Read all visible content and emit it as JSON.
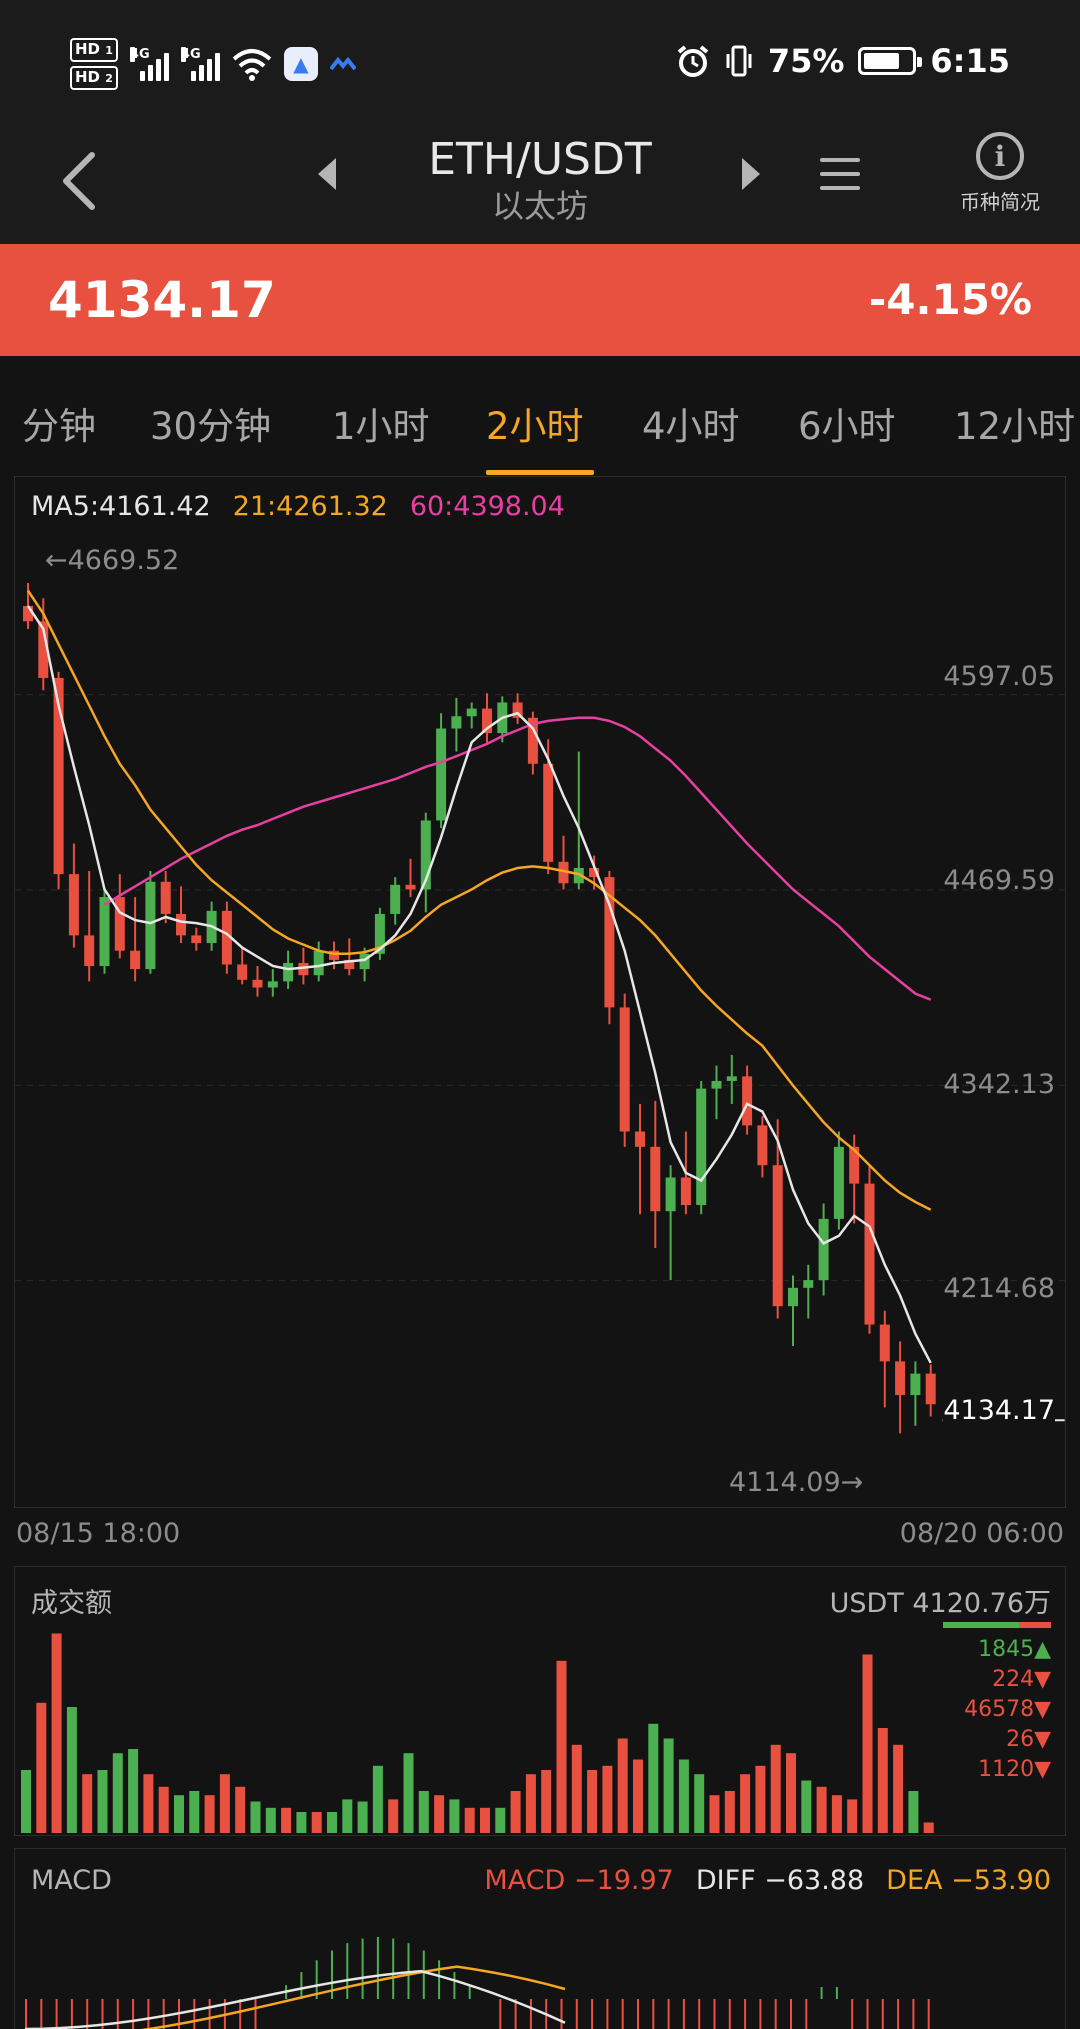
{
  "status_bar": {
    "hd1": "HD",
    "hd1_sub": "1",
    "hd2": "HD",
    "hd2_sub": "2",
    "sim1": "4G",
    "sim2": "4G",
    "battery_pct": "75%",
    "battery_level": 0.75,
    "time": "6:15"
  },
  "nav": {
    "pair": "ETH/USDT",
    "pair_cn": "以太坊",
    "info_label": "币种简况"
  },
  "price": {
    "last": "4134.17",
    "change": "-4.15%",
    "color": "#e8503f"
  },
  "tabs": [
    {
      "label": "分钟",
      "active": false
    },
    {
      "label": "30分钟",
      "active": false
    },
    {
      "label": "1小时",
      "active": false
    },
    {
      "label": "2小时",
      "active": true
    },
    {
      "label": "4小时",
      "active": false
    },
    {
      "label": "6小时",
      "active": false
    },
    {
      "label": "12小时",
      "active": false
    }
  ],
  "ma_legend": {
    "ma5": "MA5:4161.42",
    "ma21": "21:4261.32",
    "ma60": "60:4398.04"
  },
  "colors": {
    "up": "#4caf50",
    "down": "#e8503f",
    "ma5": "#e6e6e6",
    "ma21": "#f5a623",
    "ma60": "#e83fa3",
    "accent": "#f5a623"
  },
  "price_axis": [
    "4597.05",
    "4469.59",
    "4342.13",
    "4214.68"
  ],
  "current_price_label": "4134.17",
  "high_marker": "←4669.52",
  "low_marker": "4114.09→",
  "time_axis": {
    "start": "08/15 18:00",
    "end": "08/20 06:00"
  },
  "volume": {
    "title": "成交额",
    "total": "USDT 4120.76万",
    "list": [
      {
        "value": "1845",
        "dir": "up"
      },
      {
        "value": "224",
        "dir": "down"
      },
      {
        "value": "46578",
        "dir": "down"
      },
      {
        "value": "26",
        "dir": "down"
      },
      {
        "value": "1120",
        "dir": "down"
      }
    ]
  },
  "macd": {
    "title": "MACD",
    "macd": "MACD −19.97",
    "diff": "DIFF −63.88",
    "dea": "DEA −53.90"
  },
  "chart_data": {
    "type": "candlestick",
    "interval": "2小时",
    "ylim": [
      4080,
      4700
    ],
    "candles": [
      [
        4655,
        4670,
        4640,
        4645
      ],
      [
        4645,
        4660,
        4600,
        4608
      ],
      [
        4608,
        4612,
        4470,
        4480
      ],
      [
        4480,
        4500,
        4432,
        4440
      ],
      [
        4440,
        4482,
        4410,
        4420
      ],
      [
        4420,
        4470,
        4415,
        4465
      ],
      [
        4465,
        4480,
        4425,
        4430
      ],
      [
        4430,
        4465,
        4410,
        4418
      ],
      [
        4418,
        4482,
        4415,
        4475
      ],
      [
        4475,
        4482,
        4448,
        4454
      ],
      [
        4454,
        4472,
        4435,
        4440
      ],
      [
        4440,
        4445,
        4430,
        4435
      ],
      [
        4435,
        4462,
        4430,
        4456
      ],
      [
        4456,
        4462,
        4415,
        4421
      ],
      [
        4421,
        4432,
        4408,
        4411
      ],
      [
        4411,
        4420,
        4400,
        4406
      ],
      [
        4406,
        4418,
        4400,
        4410
      ],
      [
        4410,
        4430,
        4405,
        4422
      ],
      [
        4422,
        4432,
        4408,
        4414
      ],
      [
        4414,
        4436,
        4410,
        4430
      ],
      [
        4430,
        4436,
        4418,
        4424
      ],
      [
        4424,
        4438,
        4414,
        4418
      ],
      [
        4418,
        4432,
        4410,
        4428
      ],
      [
        4428,
        4458,
        4424,
        4454
      ],
      [
        4454,
        4478,
        4447,
        4473
      ],
      [
        4473,
        4490,
        4465,
        4470
      ],
      [
        4470,
        4520,
        4455,
        4515
      ],
      [
        4515,
        4585,
        4510,
        4575
      ],
      [
        4575,
        4595,
        4560,
        4583
      ],
      [
        4583,
        4592,
        4575,
        4588
      ],
      [
        4588,
        4598,
        4565,
        4572
      ],
      [
        4572,
        4596,
        4566,
        4592
      ],
      [
        4592,
        4598,
        4578,
        4582
      ],
      [
        4582,
        4586,
        4545,
        4552
      ],
      [
        4552,
        4568,
        4480,
        4488
      ],
      [
        4488,
        4505,
        4470,
        4474
      ],
      [
        4474,
        4560,
        4470,
        4484
      ],
      [
        4484,
        4492,
        4470,
        4478
      ],
      [
        4478,
        4482,
        4382,
        4393
      ],
      [
        4393,
        4402,
        4302,
        4312
      ],
      [
        4312,
        4330,
        4258,
        4302
      ],
      [
        4302,
        4332,
        4236,
        4260
      ],
      [
        4260,
        4290,
        4215,
        4282
      ],
      [
        4282,
        4312,
        4258,
        4264
      ],
      [
        4264,
        4345,
        4258,
        4340
      ],
      [
        4340,
        4355,
        4320,
        4345
      ],
      [
        4345,
        4362,
        4330,
        4348
      ],
      [
        4348,
        4355,
        4310,
        4316
      ],
      [
        4316,
        4322,
        4282,
        4290
      ],
      [
        4290,
        4320,
        4190,
        4198
      ],
      [
        4198,
        4218,
        4172,
        4210
      ],
      [
        4210,
        4225,
        4190,
        4215
      ],
      [
        4215,
        4265,
        4205,
        4255
      ],
      [
        4255,
        4312,
        4248,
        4302
      ],
      [
        4302,
        4310,
        4252,
        4278
      ],
      [
        4278,
        4290,
        4180,
        4186
      ],
      [
        4186,
        4195,
        4132,
        4162
      ],
      [
        4162,
        4175,
        4115,
        4140
      ],
      [
        4140,
        4162,
        4120,
        4154
      ],
      [
        4154,
        4160,
        4126,
        4134
      ]
    ],
    "ma5": [
      4655,
      4640,
      4590,
      4550,
      4512,
      4470,
      4455,
      4450,
      4448,
      4452,
      4449,
      4448,
      4446,
      4441,
      4432,
      4426,
      4420,
      4418,
      4419,
      4420,
      4422,
      4423,
      4424,
      4431,
      4440,
      4454,
      4476,
      4504,
      4536,
      4566,
      4575,
      4582,
      4585,
      4575,
      4555,
      4531,
      4510,
      4485,
      4460,
      4430,
      4390,
      4350,
      4305,
      4285,
      4280,
      4294,
      4310,
      4330,
      4325,
      4306,
      4274,
      4252,
      4239,
      4244,
      4257,
      4250,
      4225,
      4205,
      4180,
      4161
    ],
    "ma21": [
      4665,
      4650,
      4630,
      4610,
      4590,
      4570,
      4552,
      4538,
      4522,
      4510,
      4498,
      4486,
      4476,
      4468,
      4460,
      4452,
      4444,
      4438,
      4434,
      4430,
      4428,
      4428,
      4429,
      4432,
      4437,
      4443,
      4452,
      4460,
      4465,
      4470,
      4476,
      4481,
      4484,
      4485,
      4484,
      4482,
      4480,
      4474,
      4466,
      4458,
      4450,
      4440,
      4428,
      4416,
      4404,
      4394,
      4385,
      4376,
      4368,
      4355,
      4342,
      4330,
      4318,
      4308,
      4300,
      4290,
      4280,
      4272,
      4266,
      4261
    ],
    "ma60": [
      4460,
      4466,
      4472,
      4478,
      4484,
      4490,
      4495,
      4500,
      4505,
      4509,
      4512,
      4516,
      4520,
      4524,
      4527,
      4530,
      4533,
      4536,
      4539,
      4542,
      4546,
      4550,
      4553,
      4557,
      4561,
      4565,
      4570,
      4574,
      4578,
      4580,
      4581,
      4582,
      4582,
      4580,
      4576,
      4570,
      4562,
      4554,
      4544,
      4533,
      4522,
      4511,
      4500,
      4490,
      4480,
      4470,
      4462,
      4454,
      4446,
      4436,
      4426,
      4418,
      4410,
      4402,
      4398
    ]
  },
  "volume_data": [
    [
      0.3,
      "up"
    ],
    [
      0.62,
      "dn"
    ],
    [
      0.95,
      "dn"
    ],
    [
      0.6,
      "up"
    ],
    [
      0.28,
      "dn"
    ],
    [
      0.3,
      "up"
    ],
    [
      0.38,
      "up"
    ],
    [
      0.4,
      "up"
    ],
    [
      0.28,
      "dn"
    ],
    [
      0.22,
      "dn"
    ],
    [
      0.18,
      "up"
    ],
    [
      0.2,
      "up"
    ],
    [
      0.18,
      "dn"
    ],
    [
      0.28,
      "dn"
    ],
    [
      0.22,
      "dn"
    ],
    [
      0.15,
      "up"
    ],
    [
      0.12,
      "up"
    ],
    [
      0.12,
      "dn"
    ],
    [
      0.1,
      "up"
    ],
    [
      0.1,
      "dn"
    ],
    [
      0.1,
      "up"
    ],
    [
      0.16,
      "up"
    ],
    [
      0.15,
      "up"
    ],
    [
      0.32,
      "up"
    ],
    [
      0.16,
      "dn"
    ],
    [
      0.38,
      "up"
    ],
    [
      0.2,
      "up"
    ],
    [
      0.18,
      "dn"
    ],
    [
      0.16,
      "up"
    ],
    [
      0.12,
      "dn"
    ],
    [
      0.12,
      "dn"
    ],
    [
      0.12,
      "up"
    ],
    [
      0.2,
      "dn"
    ],
    [
      0.28,
      "dn"
    ],
    [
      0.3,
      "dn"
    ],
    [
      0.82,
      "dn"
    ],
    [
      0.42,
      "dn"
    ],
    [
      0.3,
      "dn"
    ],
    [
      0.32,
      "dn"
    ],
    [
      0.45,
      "dn"
    ],
    [
      0.35,
      "dn"
    ],
    [
      0.52,
      "up"
    ],
    [
      0.45,
      "up"
    ],
    [
      0.35,
      "up"
    ],
    [
      0.28,
      "up"
    ],
    [
      0.18,
      "dn"
    ],
    [
      0.2,
      "dn"
    ],
    [
      0.28,
      "dn"
    ],
    [
      0.32,
      "dn"
    ],
    [
      0.42,
      "dn"
    ],
    [
      0.38,
      "dn"
    ],
    [
      0.25,
      "up"
    ],
    [
      0.22,
      "dn"
    ],
    [
      0.18,
      "dn"
    ],
    [
      0.16,
      "dn"
    ],
    [
      0.85,
      "dn"
    ],
    [
      0.5,
      "dn"
    ],
    [
      0.42,
      "dn"
    ],
    [
      0.2,
      "up"
    ],
    [
      0.05,
      "dn"
    ]
  ]
}
